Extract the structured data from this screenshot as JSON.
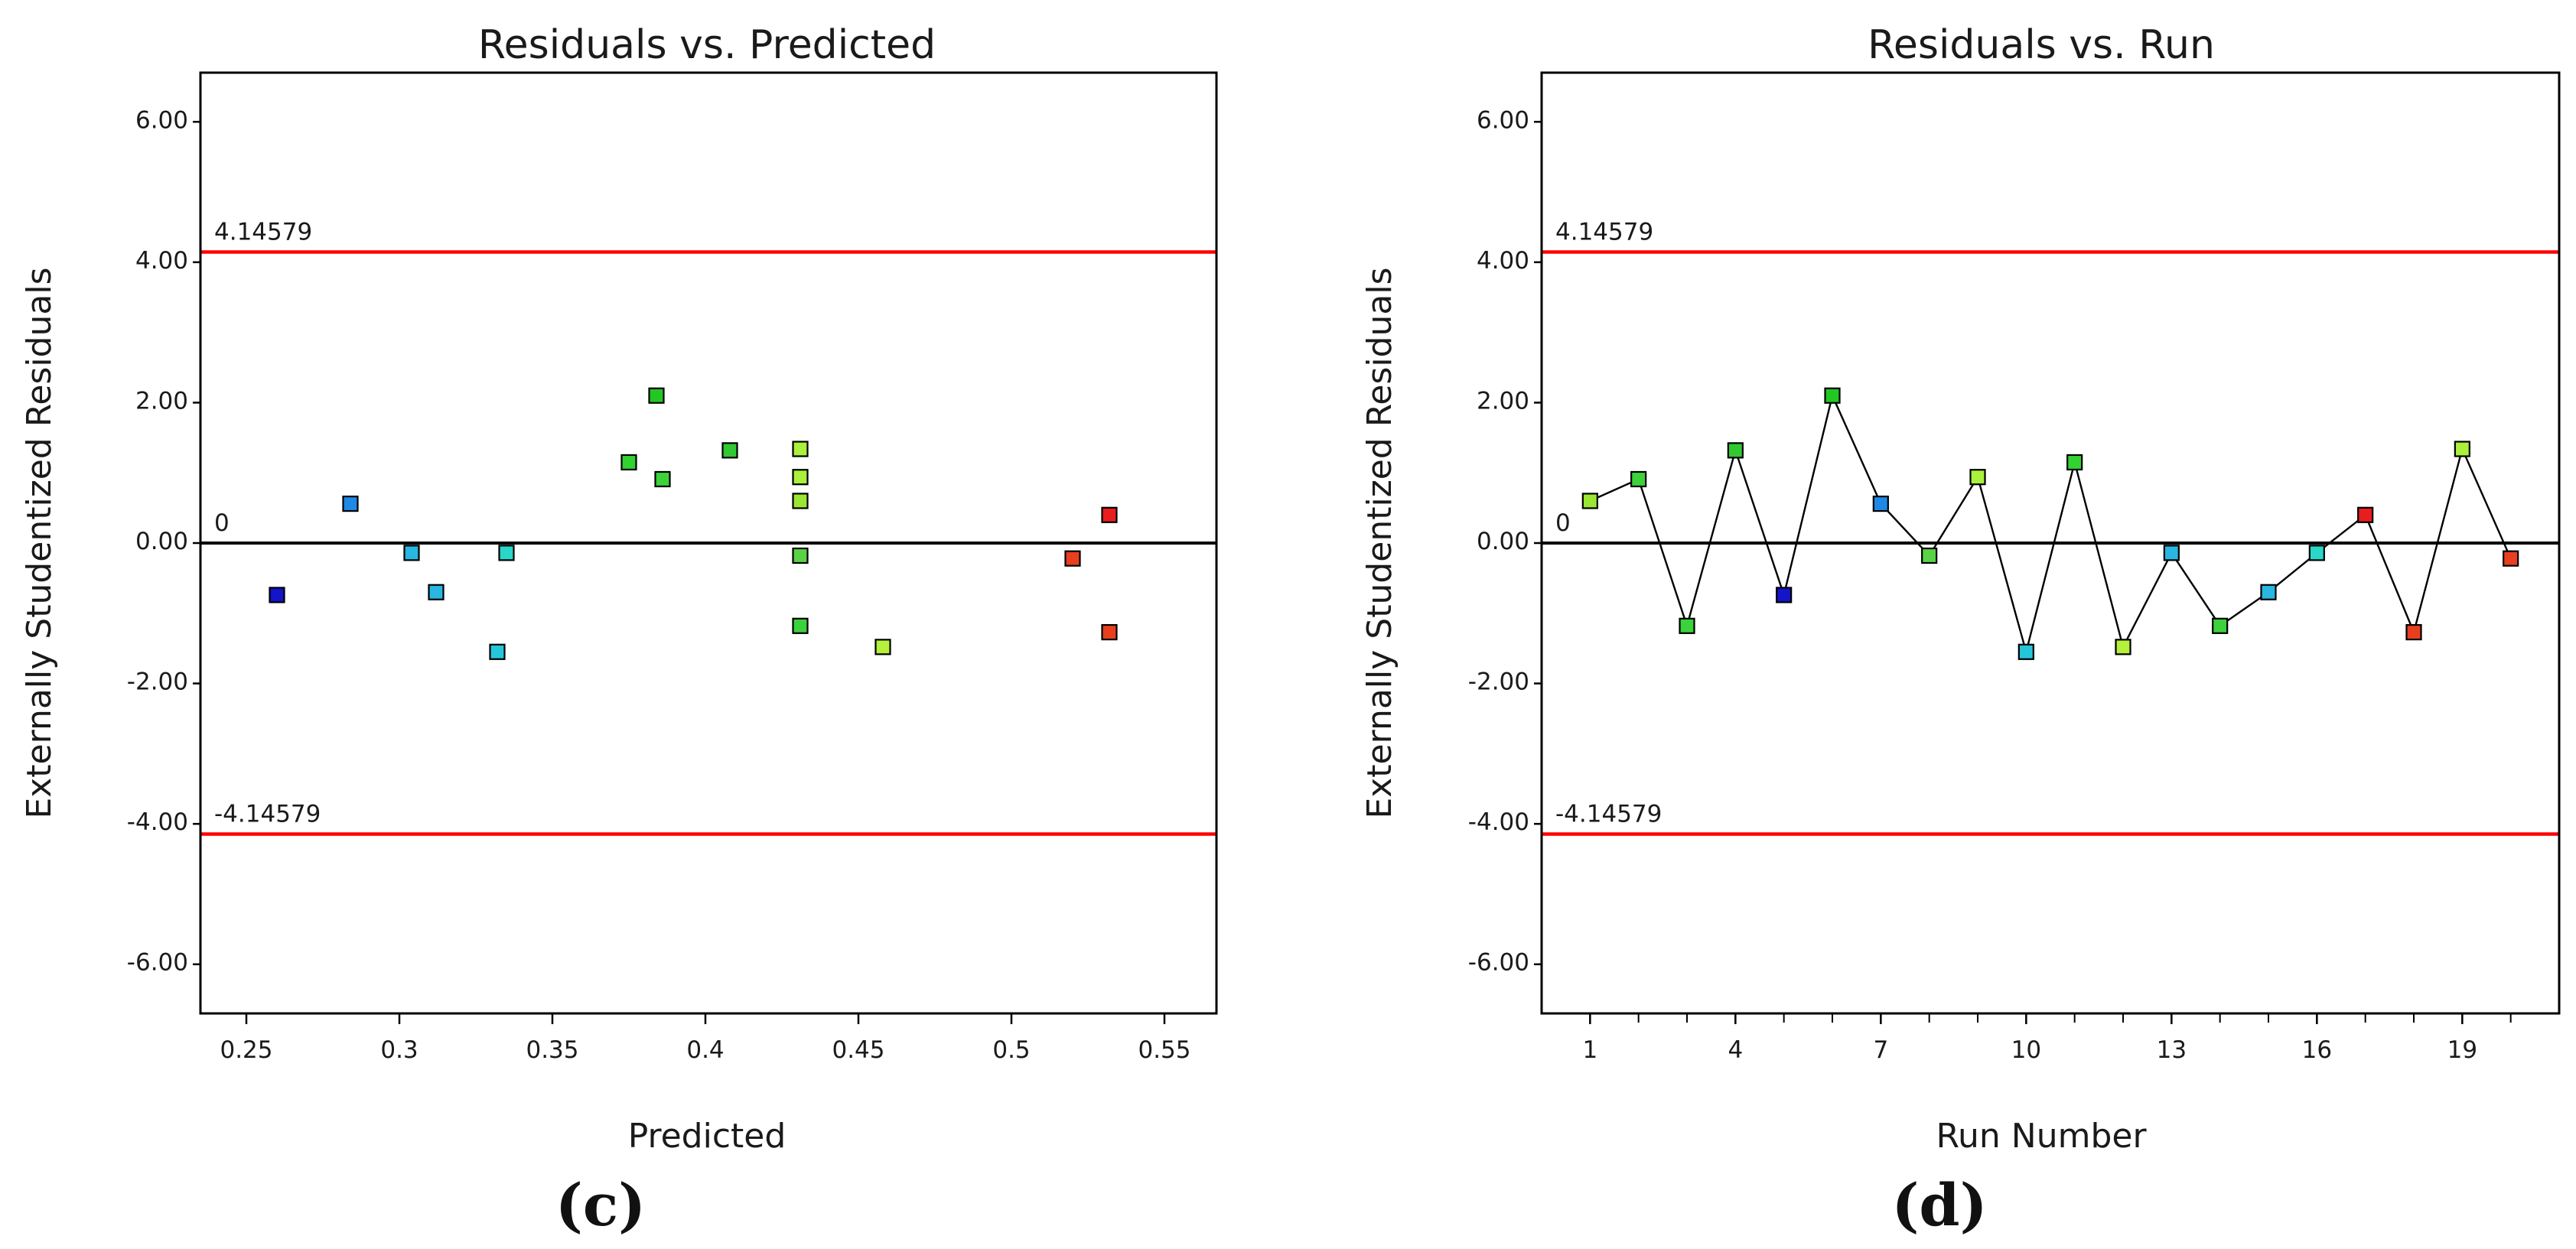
{
  "figure": {
    "panel_c": "(c)",
    "panel_d": "(d)"
  },
  "colors": {
    "limit_line": "#ff0000",
    "zero_line": "#000000",
    "axis": "#000000",
    "connector": "#000000"
  },
  "chart_data": [
    {
      "type": "scatter",
      "title": "Residuals vs. Predicted",
      "xlabel": "Predicted",
      "ylabel": "Externally Studentized Residuals",
      "xlim": [
        0.235,
        0.567
      ],
      "ylim": [
        -6.7,
        6.7
      ],
      "xticks": [
        0.25,
        0.3,
        0.35,
        0.4,
        0.45,
        0.5,
        0.55
      ],
      "xtick_labels": [
        "0.25",
        "0.3",
        "0.35",
        "0.4",
        "0.45",
        "0.5",
        "0.55"
      ],
      "yticks": [
        6,
        4,
        2,
        0,
        -2,
        -4,
        -6
      ],
      "ytick_labels": [
        "6.00",
        "4.00",
        "2.00",
        "0.00",
        "-2.00",
        "-4.00",
        "-6.00"
      ],
      "reference_lines": [
        {
          "y": 4.14579,
          "label": "4.14579",
          "color": "#ff0000"
        },
        {
          "y": 0,
          "label": "0",
          "color": "#000000"
        },
        {
          "y": -4.14579,
          "label": "-4.14579",
          "color": "#ff0000"
        }
      ],
      "points": [
        {
          "x": 0.26,
          "y": -0.74,
          "color": "#1414c8"
        },
        {
          "x": 0.284,
          "y": 0.56,
          "color": "#1e88e5"
        },
        {
          "x": 0.304,
          "y": -0.14,
          "color": "#29b6e0"
        },
        {
          "x": 0.312,
          "y": -0.7,
          "color": "#29b6e0"
        },
        {
          "x": 0.332,
          "y": -1.55,
          "color": "#26c6da"
        },
        {
          "x": 0.335,
          "y": -0.14,
          "color": "#2ad6c8"
        },
        {
          "x": 0.375,
          "y": 1.15,
          "color": "#32d232"
        },
        {
          "x": 0.384,
          "y": 2.1,
          "color": "#22c822"
        },
        {
          "x": 0.386,
          "y": 0.91,
          "color": "#3cd23c"
        },
        {
          "x": 0.408,
          "y": 1.32,
          "color": "#32c832"
        },
        {
          "x": 0.431,
          "y": 1.34,
          "color": "#aaf03c"
        },
        {
          "x": 0.431,
          "y": 0.94,
          "color": "#aaf03c"
        },
        {
          "x": 0.431,
          "y": 0.6,
          "color": "#9be632"
        },
        {
          "x": 0.431,
          "y": -0.18,
          "color": "#5ad246"
        },
        {
          "x": 0.431,
          "y": -1.18,
          "color": "#3cd23c"
        },
        {
          "x": 0.458,
          "y": -1.48,
          "color": "#b4f03c"
        },
        {
          "x": 0.52,
          "y": -0.22,
          "color": "#e8401e"
        },
        {
          "x": 0.532,
          "y": 0.4,
          "color": "#e81e1e"
        },
        {
          "x": 0.532,
          "y": -1.27,
          "color": "#e8401e"
        }
      ]
    },
    {
      "type": "line",
      "title": "Residuals vs. Run",
      "xlabel": "Run Number",
      "ylabel": "Externally Studentized Residuals",
      "xlim": [
        0,
        21
      ],
      "ylim": [
        -6.7,
        6.7
      ],
      "xticks": [
        1,
        4,
        7,
        10,
        13,
        16,
        19
      ],
      "xtick_labels": [
        "1",
        "4",
        "7",
        "10",
        "13",
        "16",
        "19"
      ],
      "minor_xticks": [
        1,
        2,
        3,
        4,
        5,
        6,
        7,
        8,
        9,
        10,
        11,
        12,
        13,
        14,
        15,
        16,
        17,
        18,
        19,
        20
      ],
      "yticks": [
        6,
        4,
        2,
        0,
        -2,
        -4,
        -6
      ],
      "ytick_labels": [
        "6.00",
        "4.00",
        "2.00",
        "0.00",
        "-2.00",
        "-4.00",
        "-6.00"
      ],
      "reference_lines": [
        {
          "y": 4.14579,
          "label": "4.14579",
          "color": "#ff0000"
        },
        {
          "y": 0,
          "label": "0",
          "color": "#000000"
        },
        {
          "y": -4.14579,
          "label": "-4.14579",
          "color": "#ff0000"
        }
      ],
      "points": [
        {
          "x": 1,
          "y": 0.6,
          "color": "#9be632"
        },
        {
          "x": 2,
          "y": 0.91,
          "color": "#3cd23c"
        },
        {
          "x": 3,
          "y": -1.18,
          "color": "#3cd23c"
        },
        {
          "x": 4,
          "y": 1.32,
          "color": "#32c832"
        },
        {
          "x": 5,
          "y": -0.74,
          "color": "#1414c8"
        },
        {
          "x": 6,
          "y": 2.1,
          "color": "#22c822"
        },
        {
          "x": 7,
          "y": 0.56,
          "color": "#1e88e5"
        },
        {
          "x": 8,
          "y": -0.18,
          "color": "#5ad246"
        },
        {
          "x": 9,
          "y": 0.94,
          "color": "#aaf03c"
        },
        {
          "x": 10,
          "y": -1.55,
          "color": "#26c6da"
        },
        {
          "x": 11,
          "y": 1.15,
          "color": "#32d232"
        },
        {
          "x": 12,
          "y": -1.48,
          "color": "#b4f03c"
        },
        {
          "x": 13,
          "y": -0.14,
          "color": "#29b6e0"
        },
        {
          "x": 14,
          "y": -1.18,
          "color": "#3cd23c"
        },
        {
          "x": 15,
          "y": -0.7,
          "color": "#29b6e0"
        },
        {
          "x": 16,
          "y": -0.14,
          "color": "#2ad6c8"
        },
        {
          "x": 17,
          "y": 0.4,
          "color": "#e81e1e"
        },
        {
          "x": 18,
          "y": -1.27,
          "color": "#e8401e"
        },
        {
          "x": 19,
          "y": 1.34,
          "color": "#aaf03c"
        },
        {
          "x": 20,
          "y": -0.22,
          "color": "#e8401e"
        }
      ]
    }
  ]
}
